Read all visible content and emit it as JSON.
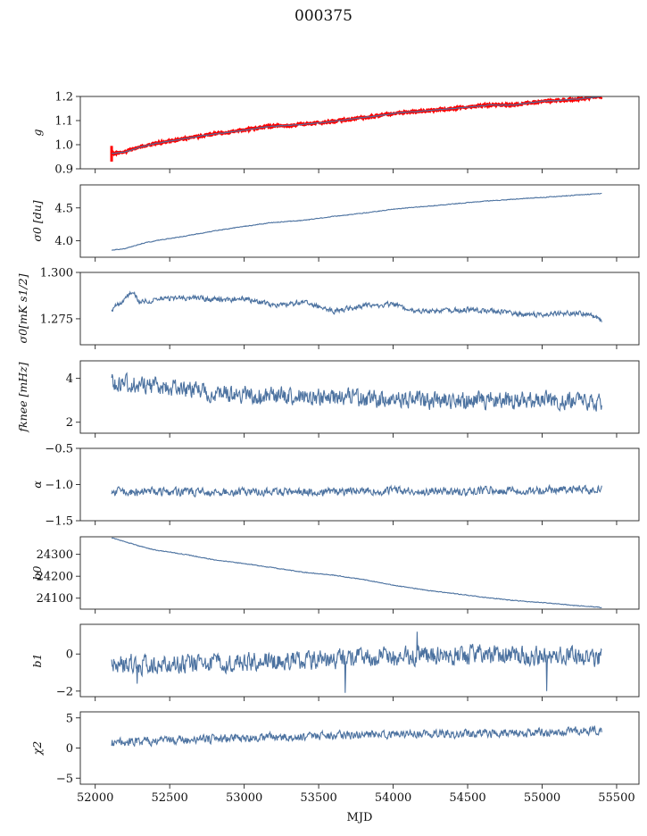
{
  "figure": {
    "title": "000375",
    "xlabel": "MJD"
  },
  "chart_data": [
    {
      "type": "line",
      "ylabel": "g",
      "xlim": [
        51900,
        55650
      ],
      "ylim": [
        0.9,
        1.2
      ],
      "yticks": [
        "0.9",
        "1.0",
        "1.1",
        "1.2"
      ],
      "series": [
        {
          "color": "#ff0000",
          "x": [
            52110,
            52130,
            52200,
            52300,
            52400,
            52600,
            52800,
            53000,
            53150,
            53300,
            53500,
            53700,
            53900,
            54000,
            54200,
            54300,
            54500,
            54650,
            54800,
            55000,
            55150,
            55250,
            55400
          ],
          "y": [
            0.965,
            0.965,
            0.97,
            0.99,
            1.005,
            1.025,
            1.045,
            1.06,
            1.075,
            1.08,
            1.09,
            1.105,
            1.12,
            1.13,
            1.14,
            1.145,
            1.155,
            1.165,
            1.165,
            1.18,
            1.185,
            1.19,
            1.2
          ],
          "noise": 0.004,
          "seed": 11
        },
        {
          "color": "#4c72a0",
          "x": [
            52110,
            52130,
            52200,
            52300,
            52400,
            52600,
            52800,
            53000,
            53150,
            53300,
            53500,
            53700,
            53900,
            54000,
            54200,
            54300,
            54500,
            54650,
            54800,
            55000,
            55150,
            55250,
            55400
          ],
          "y": [
            0.965,
            0.965,
            0.97,
            0.99,
            1.005,
            1.025,
            1.045,
            1.06,
            1.075,
            1.08,
            1.09,
            1.105,
            1.12,
            1.13,
            1.14,
            1.145,
            1.155,
            1.165,
            1.165,
            1.18,
            1.185,
            1.19,
            1.2
          ],
          "noise": 0.0015,
          "seed": 12
        }
      ]
    },
    {
      "type": "line",
      "ylabel": "σ0 [du]",
      "xlim": [
        51900,
        55650
      ],
      "ylim": [
        3.75,
        4.85
      ],
      "yticks": [
        "4.0",
        "4.5"
      ],
      "series": [
        {
          "color": "#4c72a0",
          "x": [
            52110,
            52200,
            52300,
            52400,
            52600,
            52800,
            53000,
            53200,
            53400,
            53600,
            53800,
            54000,
            54200,
            54400,
            54600,
            54800,
            55000,
            55200,
            55400
          ],
          "y": [
            3.86,
            3.88,
            3.95,
            4.0,
            4.07,
            4.15,
            4.22,
            4.28,
            4.31,
            4.37,
            4.42,
            4.48,
            4.52,
            4.56,
            4.6,
            4.63,
            4.66,
            4.69,
            4.72
          ],
          "noise": 0.005,
          "seed": 21
        }
      ]
    },
    {
      "type": "line",
      "ylabel": "σ0[mK s1/2]",
      "xlim": [
        51900,
        55650
      ],
      "ylim": [
        1.261,
        1.3
      ],
      "yticks": [
        "1.275",
        "1.300"
      ],
      "series": [
        {
          "color": "#4c72a0",
          "x": [
            52110,
            52200,
            52250,
            52300,
            52450,
            52700,
            52900,
            53000,
            53200,
            53400,
            53600,
            53800,
            54000,
            54100,
            54300,
            54500,
            54700,
            54900,
            55100,
            55300,
            55400
          ],
          "y": [
            1.28,
            1.286,
            1.29,
            1.284,
            1.286,
            1.286,
            1.285,
            1.286,
            1.282,
            1.284,
            1.279,
            1.282,
            1.283,
            1.28,
            1.279,
            1.28,
            1.279,
            1.277,
            1.278,
            1.278,
            1.274
          ],
          "noise": 0.0012,
          "seed": 31
        }
      ]
    },
    {
      "type": "line",
      "ylabel": "fknee [mHz]",
      "xlim": [
        51900,
        55650
      ],
      "ylim": [
        1.5,
        4.8
      ],
      "yticks": [
        "2",
        "4"
      ],
      "series": [
        {
          "color": "#4c72a0",
          "x": [
            52110,
            52300,
            52600,
            52900,
            53200,
            53600,
            54000,
            54400,
            54800,
            55200,
            55400
          ],
          "y": [
            3.8,
            3.7,
            3.5,
            3.3,
            3.2,
            3.15,
            3.05,
            3.0,
            3.0,
            3.0,
            2.9
          ],
          "noise": 0.35,
          "seed": 41
        }
      ]
    },
    {
      "type": "line",
      "ylabel": "α",
      "xlim": [
        51900,
        55650
      ],
      "ylim": [
        -1.5,
        -0.5
      ],
      "yticks": [
        "−1.5",
        "−1.0",
        "−0.5"
      ],
      "series": [
        {
          "color": "#4c72a0",
          "x": [
            52110,
            52600,
            53000,
            53500,
            54000,
            54500,
            55000,
            55400
          ],
          "y": [
            -1.1,
            -1.1,
            -1.1,
            -1.1,
            -1.09,
            -1.09,
            -1.08,
            -1.07
          ],
          "noise": 0.05,
          "seed": 51
        }
      ]
    },
    {
      "type": "line",
      "ylabel": "b0",
      "xlim": [
        51900,
        55650
      ],
      "ylim": [
        24050,
        24380
      ],
      "yticks": [
        "24100",
        "24200",
        "24300"
      ],
      "series": [
        {
          "color": "#4c72a0",
          "x": [
            52110,
            52200,
            52300,
            52400,
            52600,
            52800,
            53000,
            53200,
            53400,
            53600,
            53800,
            54000,
            54200,
            54400,
            54600,
            54800,
            55000,
            55200,
            55400
          ],
          "y": [
            24375,
            24358,
            24337,
            24320,
            24300,
            24275,
            24258,
            24238,
            24218,
            24205,
            24185,
            24160,
            24138,
            24122,
            24105,
            24090,
            24080,
            24068,
            24058
          ],
          "noise": 1.5,
          "seed": 61
        }
      ]
    },
    {
      "type": "line",
      "ylabel": "b1",
      "xlim": [
        51900,
        55650
      ],
      "ylim": [
        -2.3,
        1.6
      ],
      "yticks": [
        "−2",
        "0"
      ],
      "series": [
        {
          "color": "#4c72a0",
          "x": [
            52110,
            52500,
            53000,
            53500,
            54000,
            54500,
            55000,
            55400
          ],
          "y": [
            -0.5,
            -0.55,
            -0.4,
            -0.3,
            -0.15,
            -0.05,
            -0.1,
            -0.2
          ],
          "noise": 0.45,
          "seed": 71,
          "spikes": [
            [
              53680,
              -2.1
            ],
            [
              55030,
              -2.0
            ],
            [
              52280,
              -1.6
            ],
            [
              54160,
              1.2
            ]
          ]
        }
      ]
    },
    {
      "type": "line",
      "ylabel": "χ2",
      "xlim": [
        51900,
        55650
      ],
      "ylim": [
        -6,
        6
      ],
      "yticks": [
        "−5",
        "0",
        "5"
      ],
      "xticks": [
        "52000",
        "52500",
        "53000",
        "53500",
        "54000",
        "54500",
        "55000",
        "55500"
      ],
      "series": [
        {
          "color": "#4c72a0",
          "x": [
            52110,
            52500,
            53000,
            53500,
            54000,
            54500,
            55000,
            55400
          ],
          "y": [
            0.9,
            1.3,
            1.7,
            2.0,
            2.3,
            2.4,
            2.6,
            3.0
          ],
          "noise": 0.6,
          "seed": 81
        }
      ]
    }
  ]
}
